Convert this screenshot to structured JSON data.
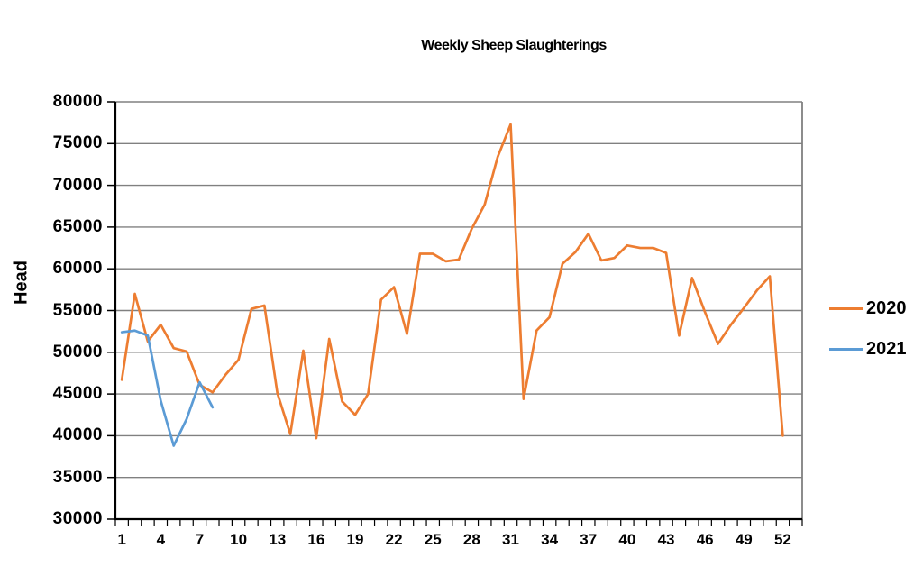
{
  "title": "Weekly Sheep Slaughterings",
  "y_axis": {
    "label": "Head",
    "tick_labels": [
      "80000",
      "75000",
      "70000",
      "65000",
      "60000",
      "55000",
      "50000",
      "45000",
      "40000",
      "35000",
      "30000"
    ],
    "min": 30000,
    "max": 80000,
    "step": 5000
  },
  "x_axis": {
    "labels": [
      "1",
      "4",
      "7",
      "10",
      "13",
      "16",
      "19",
      "22",
      "25",
      "28",
      "31",
      "34",
      "37",
      "40",
      "43",
      "46",
      "49",
      "52"
    ],
    "weeks": 52
  },
  "legend": [
    {
      "label": "2020",
      "color": "#ED7D31"
    },
    {
      "label": "2021",
      "color": "#5B9BD5"
    }
  ],
  "colors": {
    "gridline": "#808080",
    "axis": "#000000",
    "text": "#000000"
  },
  "chart_data": {
    "type": "line",
    "title": "Weekly Sheep Slaughterings",
    "xlabel": "",
    "ylabel": "Head",
    "ylim": [
      30000,
      80000
    ],
    "grid": true,
    "legend_position": "right",
    "x": [
      1,
      2,
      3,
      4,
      5,
      6,
      7,
      8,
      9,
      10,
      11,
      12,
      13,
      14,
      15,
      16,
      17,
      18,
      19,
      20,
      21,
      22,
      23,
      24,
      25,
      26,
      27,
      28,
      29,
      30,
      31,
      32,
      33,
      34,
      35,
      36,
      37,
      38,
      39,
      40,
      41,
      42,
      43,
      44,
      45,
      46,
      47,
      48,
      49,
      50,
      51,
      52
    ],
    "series": [
      {
        "name": "2020",
        "color": "#ED7D31",
        "values": [
          46700,
          57000,
          51300,
          53300,
          50500,
          50100,
          46100,
          45200,
          47300,
          49100,
          55200,
          55600,
          45100,
          40200,
          50200,
          39700,
          51600,
          44100,
          42500,
          45000,
          56300,
          57800,
          52200,
          61800,
          61800,
          60900,
          61100,
          64800,
          67700,
          73400,
          77300,
          44400,
          52600,
          54200,
          60600,
          62000,
          64200,
          61000,
          61300,
          62800,
          62500,
          62500,
          61900,
          52000,
          58900,
          54800,
          51000,
          53300,
          55300,
          57400,
          59100,
          40000
        ]
      },
      {
        "name": "2021",
        "color": "#5B9BD5",
        "values": [
          52400,
          52600,
          52000,
          44200,
          38800,
          42000,
          46400,
          43400
        ]
      }
    ]
  }
}
